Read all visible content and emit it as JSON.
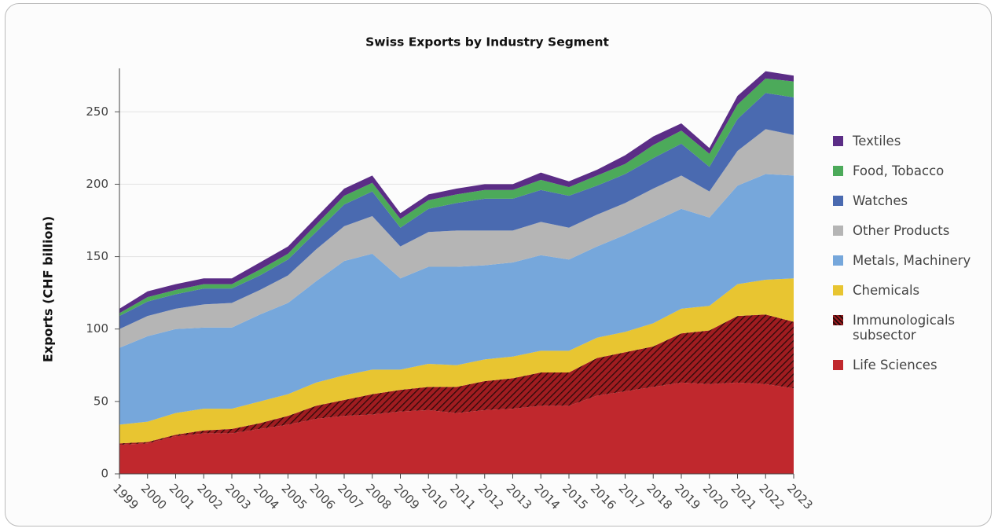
{
  "chart_data": {
    "type": "stacked_area",
    "title": "Swiss Exports by Industry Segment",
    "y_label": "Exports (CHF billion)",
    "categories": [
      "1999",
      "2000",
      "2001",
      "2002",
      "2003",
      "2004",
      "2005",
      "2006",
      "2007",
      "2008",
      "2009",
      "2010",
      "2011",
      "2012",
      "2013",
      "2014",
      "2015",
      "2016",
      "2017",
      "2018",
      "2019",
      "2020",
      "2021",
      "2022",
      "2023"
    ],
    "series": [
      {
        "name": "Life Sciences",
        "color": "#c0282d",
        "values": [
          20,
          21,
          26,
          28,
          28,
          31,
          34,
          38,
          40,
          41,
          43,
          44,
          42,
          44,
          45,
          47,
          47,
          54,
          57,
          60,
          63,
          62,
          63,
          62,
          59
        ]
      },
      {
        "name": "Immunologicals subsector",
        "color": "#a01c20",
        "pattern": "hatch",
        "values": [
          1,
          1,
          1,
          2,
          3,
          4,
          6,
          9,
          11,
          14,
          15,
          16,
          18,
          20,
          21,
          23,
          23,
          26,
          27,
          28,
          34,
          37,
          46,
          48,
          46
        ]
      },
      {
        "name": "Chemicals",
        "color": "#e8c531",
        "values": [
          13,
          14,
          15,
          15,
          14,
          15,
          15,
          16,
          17,
          17,
          14,
          16,
          15,
          15,
          15,
          15,
          15,
          14,
          14,
          16,
          17,
          17,
          22,
          24,
          30
        ]
      },
      {
        "name": "Metals, Machinery",
        "color": "#76a7db",
        "values": [
          53,
          59,
          58,
          56,
          56,
          60,
          63,
          70,
          79,
          80,
          63,
          67,
          68,
          65,
          65,
          66,
          63,
          63,
          67,
          70,
          69,
          61,
          68,
          73,
          71
        ]
      },
      {
        "name": "Other Products",
        "color": "#b5b5b5",
        "values": [
          13,
          14,
          14,
          16,
          17,
          17,
          19,
          22,
          24,
          26,
          22,
          24,
          25,
          24,
          22,
          23,
          22,
          22,
          22,
          23,
          23,
          18,
          24,
          31,
          28
        ]
      },
      {
        "name": "Watches",
        "color": "#4a6ab0",
        "values": [
          9,
          10,
          10,
          11,
          10,
          10,
          11,
          12,
          15,
          17,
          13,
          16,
          19,
          22,
          22,
          22,
          22,
          20,
          20,
          21,
          22,
          17,
          22,
          25,
          26
        ]
      },
      {
        "name": "Food, Tobacco",
        "color": "#4caa5a",
        "values": [
          2,
          3,
          3,
          3,
          3,
          4,
          4,
          5,
          6,
          6,
          6,
          6,
          6,
          6,
          6,
          7,
          6,
          7,
          7,
          9,
          9,
          9,
          10,
          10,
          11
        ]
      },
      {
        "name": "Textiles",
        "color": "#5b2d86",
        "values": [
          3,
          4,
          4,
          4,
          4,
          5,
          5,
          5,
          5,
          5,
          4,
          4,
          4,
          4,
          4,
          5,
          4,
          4,
          6,
          6,
          5,
          4,
          6,
          5,
          4
        ]
      }
    ],
    "ylim": [
      0,
      280
    ],
    "yticks": [
      0,
      50,
      100,
      150,
      200,
      250
    ],
    "grid": true,
    "legend": "right"
  }
}
